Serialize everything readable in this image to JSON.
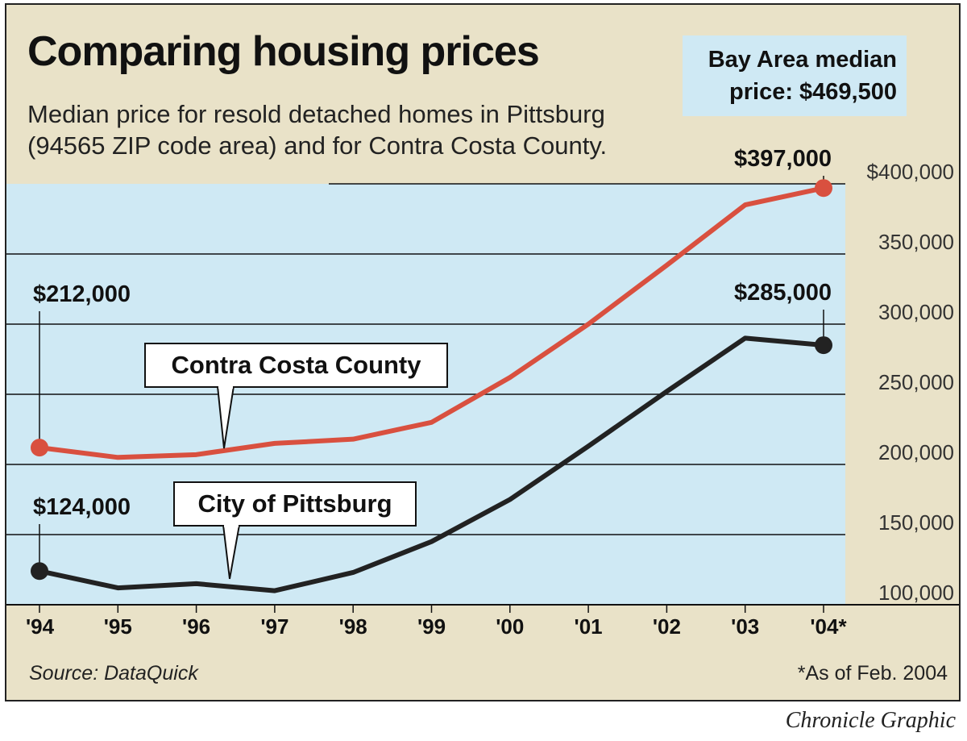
{
  "chart_data": {
    "type": "line",
    "title": "Comparing housing prices",
    "subtitle": "Median price for resold detached homes in Pittsburg (94565 ZIP code area) and for Contra Costa County.",
    "x": [
      "'94",
      "'95",
      "'96",
      "'97",
      "'98",
      "'99",
      "'00",
      "'01",
      "'02",
      "'03",
      "'04*"
    ],
    "y_ticks": [
      "$400,000",
      "350,000",
      "300,000",
      "250,000",
      "200,000",
      "150,000",
      "100,000"
    ],
    "ylim": [
      100000,
      400000
    ],
    "grid": true,
    "series": [
      {
        "name": "Contra Costa County",
        "color": "#d9503f",
        "values": [
          212000,
          205000,
          207000,
          215000,
          218000,
          230000,
          262000,
          300000,
          342000,
          385000,
          397000
        ]
      },
      {
        "name": "City of Pittsburg",
        "color": "#222222",
        "values": [
          124000,
          112000,
          115000,
          110000,
          123000,
          145000,
          175000,
          213000,
          252000,
          290000,
          285000
        ]
      }
    ],
    "annotations": {
      "county_start": "$212,000",
      "county_end": "$397,000",
      "city_start": "$124,000",
      "city_end": "$285,000"
    }
  },
  "bay_area": {
    "line1": "Bay Area median",
    "line2": "price: $469,500"
  },
  "source": "Source: DataQuick",
  "footnote": "*As of Feb. 2004",
  "credit": "Chronicle Graphic"
}
